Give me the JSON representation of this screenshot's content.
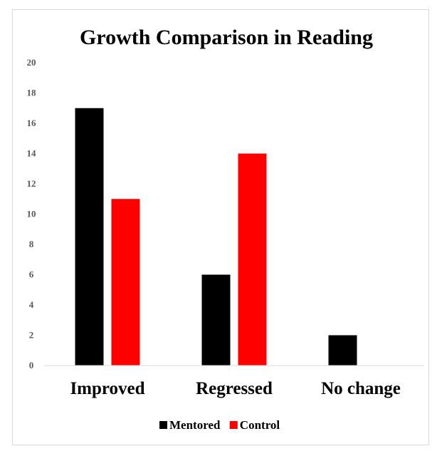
{
  "chart_data": {
    "type": "bar",
    "title": "Growth Comparison in Reading",
    "categories": [
      "Improved",
      "Regressed",
      "No change"
    ],
    "series": [
      {
        "name": "Mentored",
        "values": [
          17,
          6,
          2
        ],
        "color": "#000000"
      },
      {
        "name": "Control",
        "values": [
          11,
          14,
          0
        ],
        "color": "#ff0000"
      }
    ],
    "ylim": [
      0,
      20
    ],
    "yticks": [
      0,
      2,
      4,
      6,
      8,
      10,
      12,
      14,
      16,
      18,
      20
    ],
    "grid": false,
    "legend": "bottom",
    "xlabel": "",
    "ylabel": ""
  }
}
